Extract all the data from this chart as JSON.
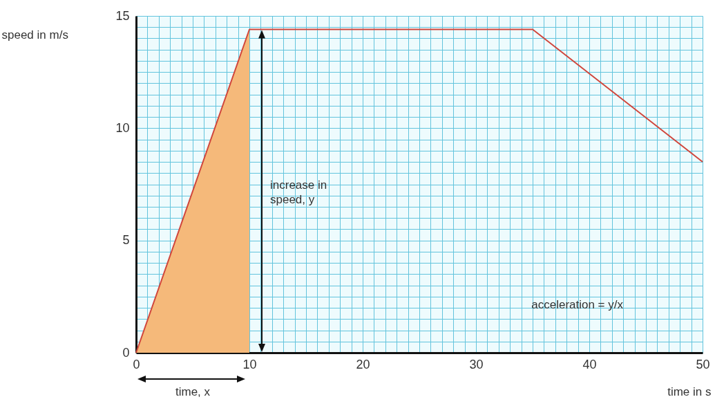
{
  "chart_data": {
    "type": "line",
    "xlabel": "time in s",
    "ylabel": "speed in m/s",
    "annotations": [
      "increase in speed, y",
      "time, x",
      "acceleration = y/x"
    ],
    "series": [
      {
        "type": "area",
        "color": "#f5b97a",
        "x": [
          0,
          10
        ],
        "values": [
          0,
          14.4
        ]
      },
      {
        "type": "line",
        "color": "#d0463c",
        "x": [
          0,
          10,
          35,
          50
        ],
        "values": [
          0,
          14.4,
          14.4,
          8.5
        ]
      }
    ],
    "xlim": [
      0,
      50
    ],
    "xticks": [
      0,
      {
        "value": 1,
        "label": null
      },
      {
        "value": 2,
        "label": null
      },
      {
        "value": 3,
        "label": null
      },
      {
        "value": 4,
        "label": null
      },
      {
        "value": 5,
        "label": null
      },
      {
        "value": 6,
        "label": null
      },
      {
        "value": 7,
        "label": null
      },
      {
        "value": 8,
        "label": null
      },
      {
        "value": 9,
        "label": null
      },
      10,
      {
        "value": 11,
        "label": null
      },
      {
        "value": 12,
        "label": null
      },
      {
        "value": 13,
        "label": null
      },
      {
        "value": 14,
        "label": null
      },
      {
        "value": 15,
        "label": null
      },
      {
        "value": 16,
        "label": null
      },
      {
        "value": 17,
        "label": null
      },
      {
        "value": 18,
        "label": null
      },
      {
        "value": 19,
        "label": null
      },
      20,
      {
        "value": 21,
        "label": null
      },
      {
        "value": 22,
        "label": null
      },
      {
        "value": 23,
        "label": null
      },
      {
        "value": 24,
        "label": null
      },
      {
        "value": 25,
        "label": null
      },
      {
        "value": 26,
        "label": null
      },
      {
        "value": 27,
        "label": null
      },
      {
        "value": 28,
        "label": null
      },
      {
        "value": 29,
        "label": null
      },
      30,
      {
        "value": 31,
        "label": null
      },
      {
        "value": 32,
        "label": null
      },
      {
        "value": 33,
        "label": null
      },
      {
        "value": 34,
        "label": null
      },
      {
        "value": 35,
        "label": null
      },
      {
        "value": 36,
        "label": null
      },
      {
        "value": 37,
        "label": null
      },
      {
        "value": 38,
        "label": null
      },
      {
        "value": 39,
        "label": null
      },
      40,
      {
        "value": 41,
        "label": null
      },
      {
        "value": 42,
        "label": null
      },
      {
        "value": 43,
        "label": null
      },
      {
        "value": 44,
        "label": null
      },
      {
        "value": 45,
        "label": null
      },
      {
        "value": 46,
        "label": null
      },
      {
        "value": 47,
        "label": null
      },
      {
        "value": 48,
        "label": null
      },
      {
        "value": 49,
        "label": null
      },
      50
    ],
    "ylim": [
      0,
      15
    ],
    "yticks": [
      0,
      {
        "value": 0.5,
        "label": null
      },
      {
        "value": 1,
        "label": null
      },
      {
        "value": 1.5,
        "label": null
      },
      {
        "value": 2,
        "label": null
      },
      {
        "value": 2.5,
        "label": null
      },
      {
        "value": 3,
        "label": null
      },
      {
        "value": 3.5,
        "label": null
      },
      {
        "value": 4,
        "label": null
      },
      {
        "value": 4.5,
        "label": null
      },
      5,
      {
        "value": 5.5,
        "label": null
      },
      {
        "value": 6,
        "label": null
      },
      {
        "value": 6.5,
        "label": null
      },
      {
        "value": 7,
        "label": null
      },
      {
        "value": 7.5,
        "label": null
      },
      {
        "value": 8,
        "label": null
      },
      {
        "value": 8.5,
        "label": null
      },
      {
        "value": 9,
        "label": null
      },
      {
        "value": 9.5,
        "label": null
      },
      10,
      {
        "value": 10.5,
        "label": null
      },
      {
        "value": 11,
        "label": null
      },
      {
        "value": 11.5,
        "label": null
      },
      {
        "value": 12,
        "label": null
      },
      {
        "value": 12.5,
        "label": null
      },
      {
        "value": 13,
        "label": null
      },
      {
        "value": 13.5,
        "label": null
      },
      {
        "value": 14,
        "label": null
      },
      {
        "value": 14.5,
        "label": null
      },
      15
    ],
    "grid": true
  }
}
